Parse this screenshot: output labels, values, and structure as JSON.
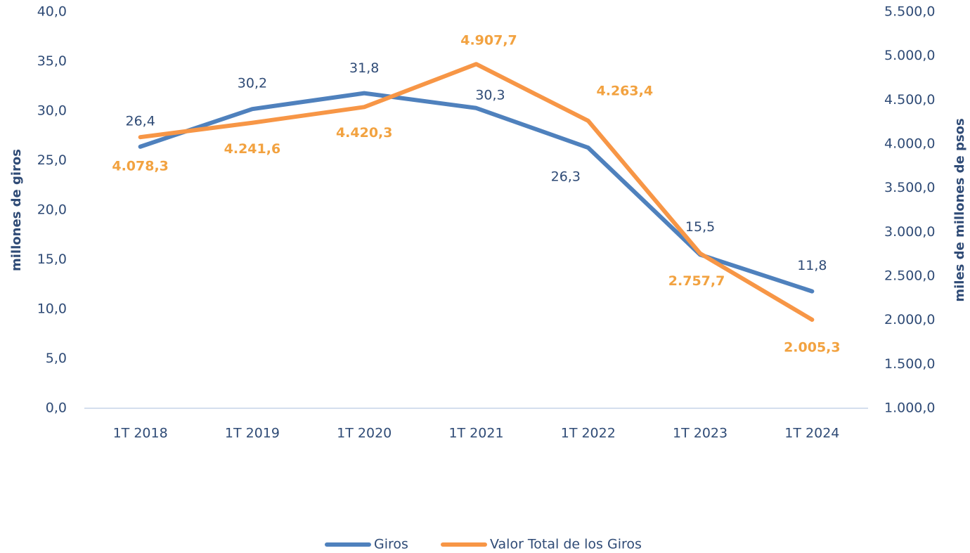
{
  "chart_data": {
    "type": "line",
    "categories": [
      "1T 2018",
      "1T 2019",
      "1T 2020",
      "1T 2021",
      "1T 2022",
      "1T 2023",
      "1T 2024"
    ],
    "series": [
      {
        "name": "Giros",
        "color": "#4f81bd",
        "values": [
          26.4,
          30.2,
          31.8,
          30.3,
          26.3,
          15.5,
          11.8
        ],
        "value_labels": [
          "26,4",
          "30,2",
          "31,8",
          "30,3",
          "26,3",
          "15,5",
          "11,8"
        ]
      },
      {
        "name": "Valor Total de los Giros",
        "color": "#f79646",
        "axis": "y2",
        "values": [
          4078.3,
          4241.6,
          4420.3,
          4907.7,
          4263.4,
          2757.7,
          2005.3
        ],
        "value_labels": [
          "4.078,3",
          "4.241,6",
          "4.420,3",
          "4.907,7",
          "4.263,4",
          "2.757,7",
          "2.005,3"
        ]
      }
    ],
    "ylabel": "millones de giros",
    "y2label": "miles de millones de psos",
    "ylim": [
      0,
      40
    ],
    "yticks": [
      {
        "value": 0,
        "label": "0,0"
      },
      {
        "value": 5,
        "label": "5,0"
      },
      {
        "value": 10,
        "label": "10,0"
      },
      {
        "value": 15,
        "label": "15,0"
      },
      {
        "value": 20,
        "label": "20,0"
      },
      {
        "value": 25,
        "label": "25,0"
      },
      {
        "value": 30,
        "label": "30,0"
      },
      {
        "value": 35,
        "label": "35,0"
      },
      {
        "value": 40,
        "label": "40,0"
      }
    ],
    "y2lim": [
      1000,
      5500
    ],
    "y2ticks": [
      {
        "value": 1000,
        "label": "1.000,0"
      },
      {
        "value": 1500,
        "label": "1.500,0"
      },
      {
        "value": 2000,
        "label": "2.000,0"
      },
      {
        "value": 2500,
        "label": "2.500,0"
      },
      {
        "value": 3000,
        "label": "3.000,0"
      },
      {
        "value": 3500,
        "label": "3.500,0"
      },
      {
        "value": 4000,
        "label": "4.000,0"
      },
      {
        "value": 4500,
        "label": "4.500,0"
      },
      {
        "value": 5000,
        "label": "5.000,0"
      },
      {
        "value": 5500,
        "label": "5.500,0"
      }
    ],
    "legend": "bottom"
  }
}
